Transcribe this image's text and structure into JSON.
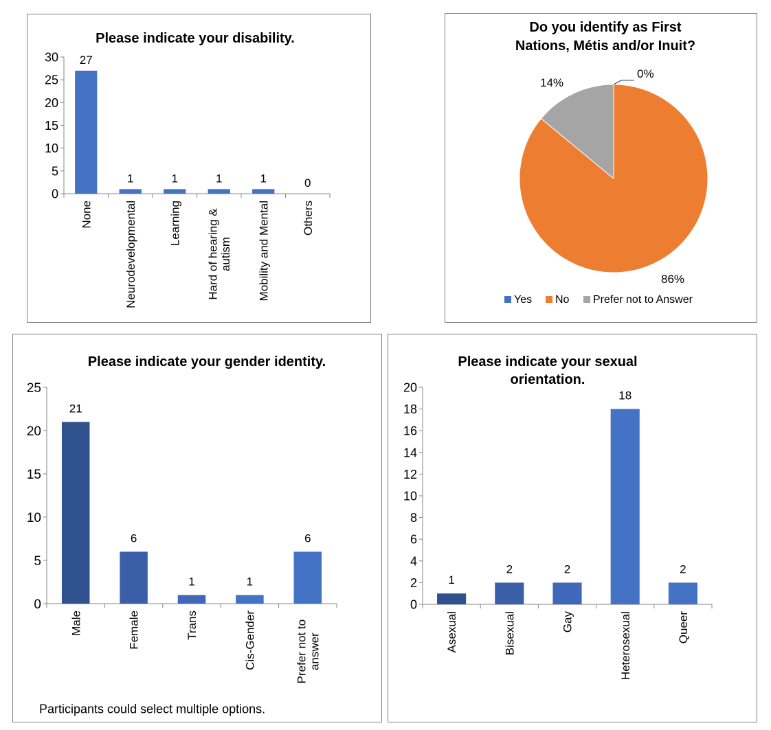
{
  "chart_data": [
    {
      "type": "bar",
      "title": "Please indicate your disability.",
      "categories": [
        "None",
        "Neurodevelopmental",
        "Learning",
        "Hard of hearing & autism",
        "Mobility and Mental",
        "Others"
      ],
      "category_lines": [
        [
          "None"
        ],
        [
          "Neurodevelopmental"
        ],
        [
          "Learning"
        ],
        [
          "Hard of hearing &",
          "autism"
        ],
        [
          "Mobility and Mental"
        ],
        [
          "Others"
        ]
      ],
      "values": [
        27,
        1,
        1,
        1,
        1,
        0
      ],
      "ylim": [
        0,
        30
      ],
      "yticks": [
        0,
        5,
        10,
        15,
        20,
        25,
        30
      ],
      "data_labels": [
        "27",
        "1",
        "1",
        "1",
        "1",
        "0"
      ],
      "colors": [
        "#4472C4",
        "#4472C4",
        "#4472C4",
        "#4472C4",
        "#4472C4",
        "#4472C4"
      ],
      "grid": false
    },
    {
      "type": "pie",
      "title_lines": [
        "Do you identify as First",
        "Nations, Métis and/or Inuit?"
      ],
      "labels": [
        "Yes",
        "No",
        "Prefer not to Answer"
      ],
      "values": [
        0,
        86,
        14
      ],
      "data_labels": [
        "0%",
        "86%",
        "14%"
      ],
      "colors": [
        "#4472C4",
        "#ED7D31",
        "#A5A5A5"
      ],
      "legend": "bottom"
    },
    {
      "type": "bar",
      "title": "Please indicate your gender identity.",
      "categories": [
        "Male",
        "Female",
        "Trans",
        "Cis-Gender",
        "Prefer not to answer"
      ],
      "category_lines": [
        [
          "Male"
        ],
        [
          "Female"
        ],
        [
          "Trans"
        ],
        [
          "Cis-Gender"
        ],
        [
          "Prefer not to",
          "answer"
        ]
      ],
      "values": [
        21,
        6,
        1,
        1,
        6
      ],
      "ylim": [
        0,
        25
      ],
      "yticks": [
        0,
        5,
        10,
        15,
        20,
        25
      ],
      "data_labels": [
        "21",
        "6",
        "1",
        "1",
        "6"
      ],
      "colors": [
        "#2F528F",
        "#3A5FA8",
        "#4068BA",
        "#4472C4",
        "#4472C4"
      ],
      "note": "Participants could select multiple options.",
      "grid": false
    },
    {
      "type": "bar",
      "title_lines": [
        "Please indicate your sexual",
        "orientation."
      ],
      "categories": [
        "Asexual",
        "Bisexual",
        "Gay",
        "Heterosexual",
        "Queer"
      ],
      "category_lines": [
        [
          "Asexual"
        ],
        [
          "Bisexual"
        ],
        [
          "Gay"
        ],
        [
          "Heterosexual"
        ],
        [
          "Queer"
        ]
      ],
      "values": [
        1,
        2,
        2,
        18,
        2
      ],
      "ylim": [
        0,
        20
      ],
      "yticks": [
        0,
        2,
        4,
        6,
        8,
        10,
        12,
        14,
        16,
        18,
        20
      ],
      "data_labels": [
        "1",
        "2",
        "2",
        "18",
        "2"
      ],
      "colors": [
        "#2F528F",
        "#3A5FA8",
        "#4068BA",
        "#4472C4",
        "#4472C4"
      ],
      "grid": false
    }
  ]
}
